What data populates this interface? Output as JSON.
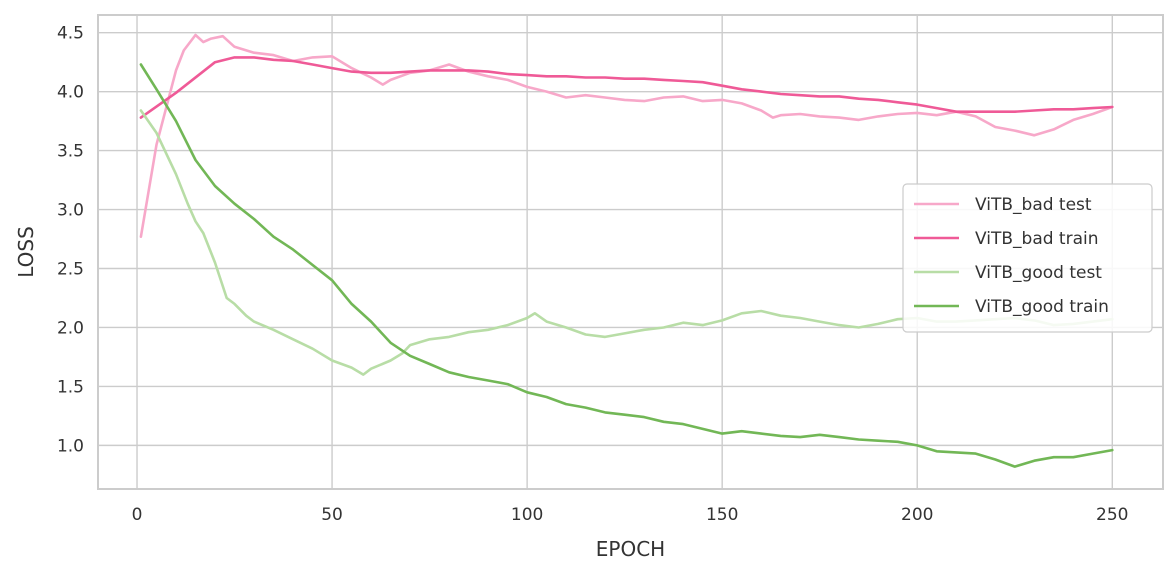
{
  "chart_data": {
    "type": "line",
    "title": "",
    "xlabel": "EPOCH",
    "ylabel": "LOSS",
    "xlim": [
      -10,
      263
    ],
    "ylim": [
      0.63,
      4.65
    ],
    "xticks": [
      0,
      50,
      100,
      150,
      200,
      250
    ],
    "yticks": [
      1.0,
      1.5,
      2.0,
      2.5,
      3.0,
      3.5,
      4.0,
      4.5
    ],
    "ytick_labels": [
      "1.0",
      "1.5",
      "2.0",
      "2.5",
      "3.0",
      "3.5",
      "4.0",
      "4.5"
    ],
    "xtick_labels": [
      "0",
      "50",
      "100",
      "150",
      "200",
      "250"
    ],
    "grid": true,
    "legend_position": "center-right",
    "series": [
      {
        "name": "ViTB_bad test",
        "color": "#f7a8c9",
        "x": [
          1,
          5,
          10,
          12,
          15,
          17,
          19,
          22,
          25,
          30,
          35,
          40,
          45,
          50,
          55,
          60,
          63,
          65,
          70,
          75,
          80,
          85,
          90,
          95,
          100,
          105,
          110,
          115,
          120,
          125,
          130,
          135,
          140,
          145,
          150,
          155,
          160,
          163,
          165,
          170,
          175,
          180,
          185,
          190,
          195,
          200,
          205,
          210,
          215,
          220,
          225,
          230,
          235,
          240,
          245,
          250
        ],
        "values": [
          2.77,
          3.55,
          4.18,
          4.35,
          4.48,
          4.42,
          4.45,
          4.47,
          4.38,
          4.33,
          4.31,
          4.26,
          4.29,
          4.3,
          4.2,
          4.12,
          4.06,
          4.1,
          4.16,
          4.18,
          4.23,
          4.17,
          4.13,
          4.1,
          4.04,
          4.0,
          3.95,
          3.97,
          3.95,
          3.93,
          3.92,
          3.95,
          3.96,
          3.92,
          3.93,
          3.9,
          3.84,
          3.78,
          3.8,
          3.81,
          3.79,
          3.78,
          3.76,
          3.79,
          3.81,
          3.82,
          3.8,
          3.83,
          3.79,
          3.7,
          3.67,
          3.63,
          3.68,
          3.76,
          3.81,
          3.87
        ]
      },
      {
        "name": "ViTB_bad train",
        "color": "#ef5a97",
        "x": [
          1,
          10,
          20,
          25,
          30,
          35,
          40,
          45,
          50,
          55,
          60,
          65,
          70,
          75,
          80,
          85,
          90,
          95,
          100,
          105,
          110,
          115,
          120,
          125,
          130,
          135,
          140,
          145,
          150,
          155,
          160,
          165,
          170,
          175,
          180,
          185,
          190,
          195,
          200,
          205,
          210,
          215,
          220,
          225,
          230,
          235,
          240,
          245,
          250
        ],
        "values": [
          3.78,
          3.99,
          4.25,
          4.29,
          4.29,
          4.27,
          4.26,
          4.23,
          4.2,
          4.17,
          4.16,
          4.16,
          4.17,
          4.18,
          4.18,
          4.18,
          4.17,
          4.15,
          4.14,
          4.13,
          4.13,
          4.12,
          4.12,
          4.11,
          4.11,
          4.1,
          4.09,
          4.08,
          4.05,
          4.02,
          4.0,
          3.98,
          3.97,
          3.96,
          3.96,
          3.94,
          3.93,
          3.91,
          3.89,
          3.86,
          3.83,
          3.83,
          3.83,
          3.83,
          3.84,
          3.85,
          3.85,
          3.86,
          3.87
        ]
      },
      {
        "name": "ViTB_good test",
        "color": "#b8dda6",
        "x": [
          1,
          5,
          10,
          13,
          15,
          17,
          20,
          23,
          25,
          28,
          30,
          35,
          40,
          45,
          50,
          55,
          58,
          60,
          65,
          68,
          70,
          75,
          80,
          85,
          90,
          95,
          100,
          102,
          105,
          110,
          115,
          120,
          125,
          130,
          135,
          140,
          145,
          150,
          155,
          160,
          165,
          170,
          175,
          180,
          185,
          190,
          195,
          200,
          205,
          210,
          215,
          220,
          225,
          230,
          235,
          240,
          245,
          250
        ],
        "values": [
          3.84,
          3.65,
          3.3,
          3.05,
          2.9,
          2.8,
          2.55,
          2.25,
          2.2,
          2.1,
          2.05,
          1.98,
          1.9,
          1.82,
          1.72,
          1.66,
          1.6,
          1.65,
          1.72,
          1.78,
          1.85,
          1.9,
          1.92,
          1.96,
          1.98,
          2.02,
          2.08,
          2.12,
          2.05,
          2.0,
          1.94,
          1.92,
          1.95,
          1.98,
          2.0,
          2.04,
          2.02,
          2.06,
          2.12,
          2.14,
          2.1,
          2.08,
          2.05,
          2.02,
          2.0,
          2.03,
          2.07,
          2.08,
          2.05,
          2.05,
          2.06,
          2.07,
          2.08,
          2.06,
          2.02,
          2.03,
          2.05,
          2.07
        ]
      },
      {
        "name": "ViTB_good train",
        "color": "#72b756",
        "x": [
          1,
          5,
          10,
          15,
          20,
          25,
          30,
          35,
          40,
          45,
          50,
          55,
          60,
          65,
          70,
          75,
          80,
          85,
          90,
          95,
          100,
          105,
          110,
          115,
          120,
          125,
          130,
          135,
          140,
          145,
          150,
          155,
          160,
          165,
          170,
          175,
          180,
          185,
          190,
          195,
          200,
          205,
          210,
          215,
          220,
          225,
          230,
          235,
          240,
          245,
          250
        ],
        "values": [
          4.23,
          4.02,
          3.75,
          3.42,
          3.2,
          3.05,
          2.92,
          2.77,
          2.66,
          2.53,
          2.4,
          2.2,
          2.05,
          1.87,
          1.76,
          1.69,
          1.62,
          1.58,
          1.55,
          1.52,
          1.45,
          1.41,
          1.35,
          1.32,
          1.28,
          1.26,
          1.24,
          1.2,
          1.18,
          1.14,
          1.1,
          1.12,
          1.1,
          1.08,
          1.07,
          1.09,
          1.07,
          1.05,
          1.04,
          1.03,
          1.0,
          0.95,
          0.94,
          0.93,
          0.88,
          0.82,
          0.87,
          0.9,
          0.9,
          0.93,
          0.96
        ]
      }
    ]
  }
}
